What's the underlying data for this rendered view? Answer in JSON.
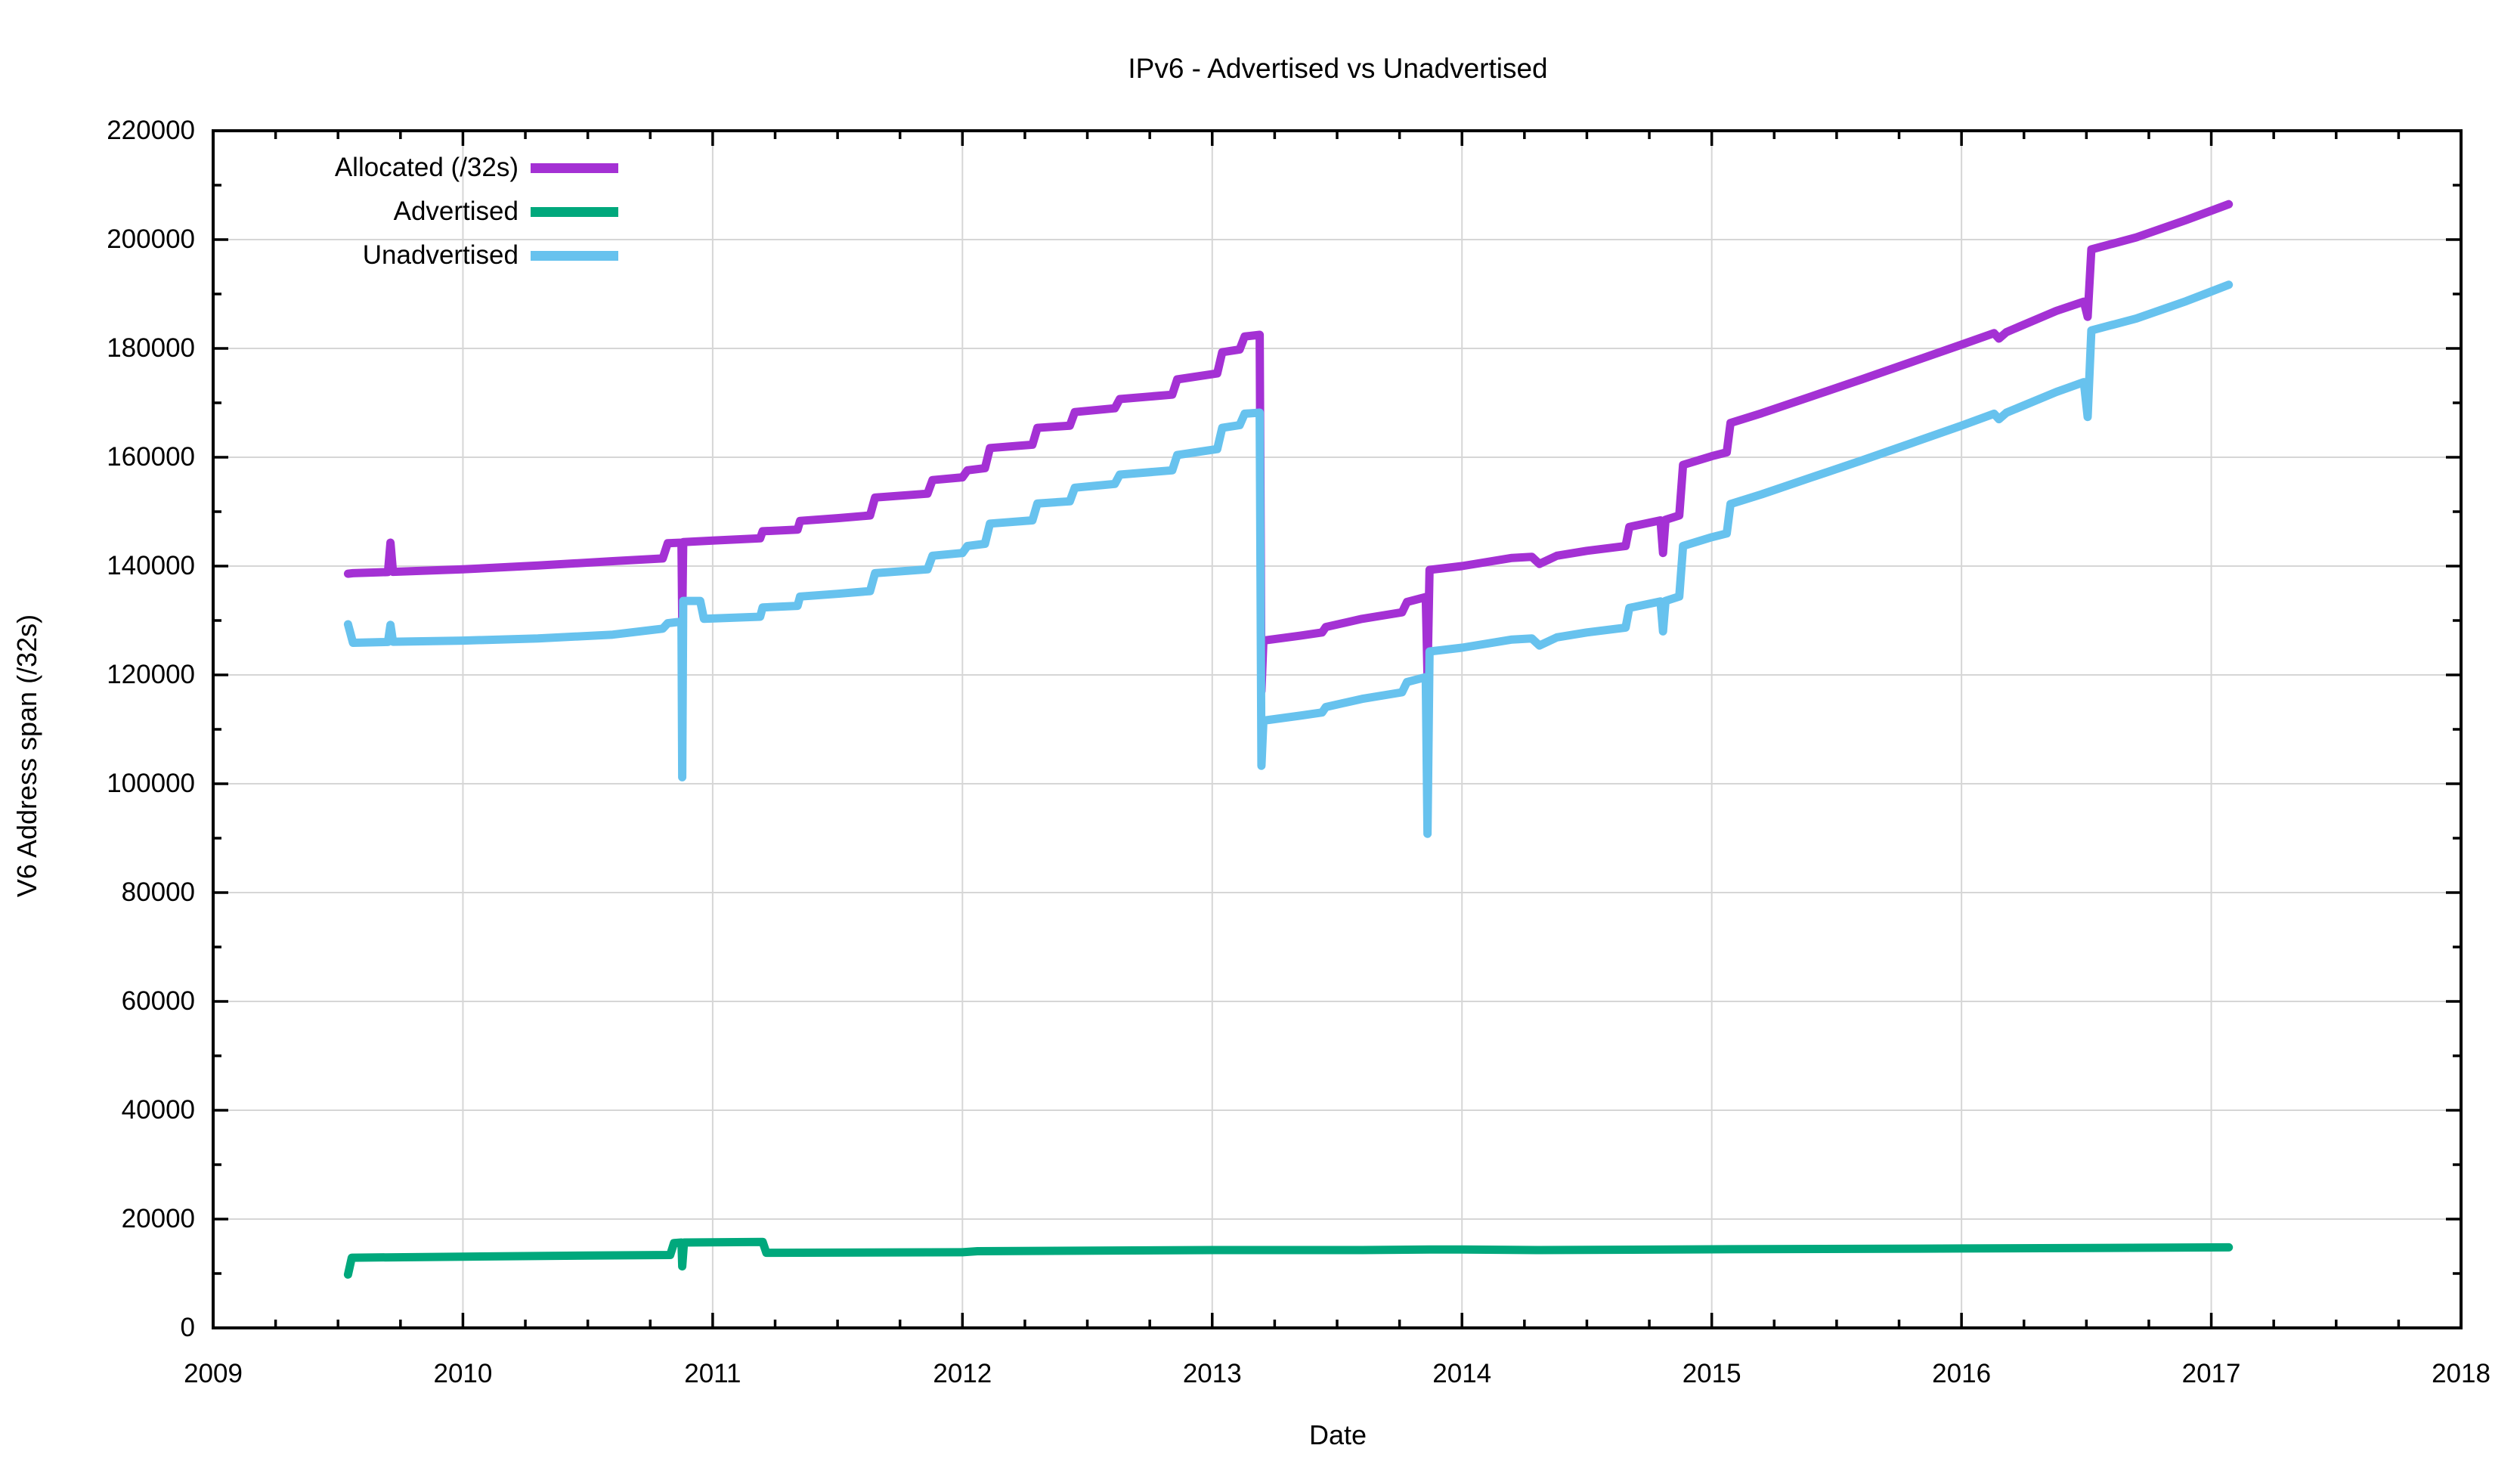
{
  "title": "IPv6 - Advertised vs Unadvertised",
  "axes": {
    "xlabel": "Date",
    "ylabel": "V6 Address span (/32s)",
    "x_tick_labels": [
      "2009",
      "2010",
      "2011",
      "2012",
      "2013",
      "2014",
      "2015",
      "2016",
      "2017",
      "2018"
    ],
    "x_tick_values": [
      2009,
      2010,
      2011,
      2012,
      2013,
      2014,
      2015,
      2016,
      2017,
      2018
    ],
    "y_tick_labels": [
      "0",
      "20000",
      "40000",
      "60000",
      "80000",
      "100000",
      "120000",
      "140000",
      "160000",
      "180000",
      "200000",
      "220000"
    ],
    "y_tick_values": [
      0,
      20000,
      40000,
      60000,
      80000,
      100000,
      120000,
      140000,
      160000,
      180000,
      200000,
      220000
    ],
    "x_minor_step": 0.25,
    "y_minor_step": 10000,
    "grid_color": "#d6d6d6",
    "axis_color": "#000000"
  },
  "legend": {
    "items": [
      {
        "label": "Allocated (/32s)"
      },
      {
        "label": "Advertised"
      },
      {
        "label": "Unadvertised"
      }
    ]
  },
  "chart_data": {
    "type": "line",
    "title": "IPv6 - Advertised vs Unadvertised",
    "xlabel": "Date",
    "ylabel": "V6 Address span (/32s)",
    "xlim": [
      2009,
      2018
    ],
    "ylim": [
      0,
      220000
    ],
    "grid": true,
    "legend_position": "top-left-inside",
    "series": [
      {
        "name": "Allocated (/32s)",
        "color": "#a431d4",
        "points": [
          [
            2009.54,
            138600
          ],
          [
            2009.56,
            138700
          ],
          [
            2009.7,
            138900
          ],
          [
            2009.71,
            144300
          ],
          [
            2009.72,
            138950
          ],
          [
            2010.0,
            139400
          ],
          [
            2010.3,
            140100
          ],
          [
            2010.6,
            140900
          ],
          [
            2010.8,
            141400
          ],
          [
            2010.82,
            144200
          ],
          [
            2010.875,
            144300
          ],
          [
            2010.878,
            130000
          ],
          [
            2010.882,
            144400
          ],
          [
            2011.0,
            144700
          ],
          [
            2011.19,
            145100
          ],
          [
            2011.2,
            146400
          ],
          [
            2011.34,
            146700
          ],
          [
            2011.35,
            148300
          ],
          [
            2011.5,
            148800
          ],
          [
            2011.63,
            149300
          ],
          [
            2011.65,
            152600
          ],
          [
            2011.86,
            153300
          ],
          [
            2011.88,
            155800
          ],
          [
            2012.0,
            156300
          ],
          [
            2012.02,
            157600
          ],
          [
            2012.09,
            158000
          ],
          [
            2012.11,
            161700
          ],
          [
            2012.28,
            162300
          ],
          [
            2012.3,
            165400
          ],
          [
            2012.43,
            165800
          ],
          [
            2012.45,
            168300
          ],
          [
            2012.61,
            169000
          ],
          [
            2012.63,
            170700
          ],
          [
            2012.84,
            171500
          ],
          [
            2012.86,
            174300
          ],
          [
            2013.02,
            175400
          ],
          [
            2013.04,
            179300
          ],
          [
            2013.11,
            179800
          ],
          [
            2013.13,
            182200
          ],
          [
            2013.19,
            182500
          ],
          [
            2013.197,
            117000
          ],
          [
            2013.205,
            126300
          ],
          [
            2013.35,
            127200
          ],
          [
            2013.44,
            127800
          ],
          [
            2013.455,
            128800
          ],
          [
            2013.6,
            130300
          ],
          [
            2013.76,
            131500
          ],
          [
            2013.78,
            133400
          ],
          [
            2013.855,
            134300
          ],
          [
            2013.862,
            119900
          ],
          [
            2013.87,
            139300
          ],
          [
            2014.0,
            140000
          ],
          [
            2014.2,
            141500
          ],
          [
            2014.28,
            141700
          ],
          [
            2014.31,
            140400
          ],
          [
            2014.38,
            141900
          ],
          [
            2014.5,
            142800
          ],
          [
            2014.655,
            143700
          ],
          [
            2014.67,
            147200
          ],
          [
            2014.795,
            148400
          ],
          [
            2014.805,
            142400
          ],
          [
            2014.815,
            148500
          ],
          [
            2014.87,
            149300
          ],
          [
            2014.885,
            158600
          ],
          [
            2015.0,
            160200
          ],
          [
            2015.06,
            160900
          ],
          [
            2015.075,
            166300
          ],
          [
            2015.2,
            168100
          ],
          [
            2015.4,
            171200
          ],
          [
            2015.6,
            174300
          ],
          [
            2015.8,
            177500
          ],
          [
            2016.0,
            180700
          ],
          [
            2016.13,
            182800
          ],
          [
            2016.15,
            181800
          ],
          [
            2016.18,
            183000
          ],
          [
            2016.38,
            186900
          ],
          [
            2016.49,
            188600
          ],
          [
            2016.505,
            185800
          ],
          [
            2016.52,
            198200
          ],
          [
            2016.7,
            200400
          ],
          [
            2016.9,
            203600
          ],
          [
            2017.07,
            206500
          ]
        ]
      },
      {
        "name": "Advertised",
        "color": "#00a87c",
        "points": [
          [
            2009.54,
            9800
          ],
          [
            2009.555,
            12900
          ],
          [
            2010.0,
            13100
          ],
          [
            2010.5,
            13300
          ],
          [
            2010.83,
            13400
          ],
          [
            2010.845,
            15600
          ],
          [
            2010.875,
            15700
          ],
          [
            2010.878,
            11300
          ],
          [
            2010.885,
            15700
          ],
          [
            2011.2,
            15800
          ],
          [
            2011.215,
            13800
          ],
          [
            2012.0,
            13900
          ],
          [
            2012.06,
            14100
          ],
          [
            2013.0,
            14300
          ],
          [
            2013.6,
            14300
          ],
          [
            2013.87,
            14400
          ],
          [
            2014.0,
            14400
          ],
          [
            2014.31,
            14300
          ],
          [
            2015.0,
            14450
          ],
          [
            2016.0,
            14600
          ],
          [
            2016.52,
            14700
          ],
          [
            2017.07,
            14800
          ]
        ]
      },
      {
        "name": "Unadvertised",
        "color": "#67c2ee",
        "points": [
          [
            2009.54,
            129300
          ],
          [
            2009.56,
            125900
          ],
          [
            2009.7,
            126050
          ],
          [
            2009.71,
            129200
          ],
          [
            2009.72,
            126100
          ],
          [
            2010.0,
            126300
          ],
          [
            2010.3,
            126700
          ],
          [
            2010.6,
            127400
          ],
          [
            2010.8,
            128500
          ],
          [
            2010.82,
            129500
          ],
          [
            2010.875,
            129800
          ],
          [
            2010.878,
            101200
          ],
          [
            2010.882,
            133600
          ],
          [
            2010.95,
            133600
          ],
          [
            2010.965,
            130300
          ],
          [
            2011.19,
            130700
          ],
          [
            2011.2,
            132400
          ],
          [
            2011.34,
            132700
          ],
          [
            2011.35,
            134400
          ],
          [
            2011.5,
            134900
          ],
          [
            2011.63,
            135400
          ],
          [
            2011.65,
            138700
          ],
          [
            2011.86,
            139400
          ],
          [
            2011.88,
            141900
          ],
          [
            2012.0,
            142400
          ],
          [
            2012.02,
            143700
          ],
          [
            2012.09,
            144100
          ],
          [
            2012.11,
            147800
          ],
          [
            2012.28,
            148400
          ],
          [
            2012.3,
            151500
          ],
          [
            2012.43,
            151900
          ],
          [
            2012.45,
            154400
          ],
          [
            2012.61,
            155100
          ],
          [
            2012.63,
            156800
          ],
          [
            2012.84,
            157600
          ],
          [
            2012.86,
            160400
          ],
          [
            2013.02,
            161500
          ],
          [
            2013.04,
            165400
          ],
          [
            2013.11,
            165900
          ],
          [
            2013.13,
            168000
          ],
          [
            2013.19,
            168200
          ],
          [
            2013.197,
            103300
          ],
          [
            2013.205,
            111600
          ],
          [
            2013.35,
            112500
          ],
          [
            2013.44,
            113100
          ],
          [
            2013.455,
            114100
          ],
          [
            2013.6,
            115600
          ],
          [
            2013.76,
            116800
          ],
          [
            2013.78,
            118700
          ],
          [
            2013.855,
            119600
          ],
          [
            2013.862,
            90800
          ],
          [
            2013.87,
            124300
          ],
          [
            2014.0,
            125000
          ],
          [
            2014.2,
            126500
          ],
          [
            2014.28,
            126700
          ],
          [
            2014.31,
            125400
          ],
          [
            2014.38,
            126900
          ],
          [
            2014.5,
            127800
          ],
          [
            2014.655,
            128700
          ],
          [
            2014.67,
            132300
          ],
          [
            2014.795,
            133500
          ],
          [
            2014.805,
            128000
          ],
          [
            2014.815,
            133600
          ],
          [
            2014.87,
            134400
          ],
          [
            2014.885,
            143700
          ],
          [
            2015.0,
            145300
          ],
          [
            2015.06,
            146000
          ],
          [
            2015.075,
            151400
          ],
          [
            2015.2,
            153200
          ],
          [
            2015.4,
            156300
          ],
          [
            2015.6,
            159400
          ],
          [
            2015.8,
            162600
          ],
          [
            2016.0,
            165800
          ],
          [
            2016.13,
            168000
          ],
          [
            2016.15,
            167000
          ],
          [
            2016.18,
            168200
          ],
          [
            2016.38,
            172000
          ],
          [
            2016.49,
            173800
          ],
          [
            2016.505,
            167400
          ],
          [
            2016.52,
            183300
          ],
          [
            2016.7,
            185500
          ],
          [
            2016.9,
            188700
          ],
          [
            2017.07,
            191700
          ]
        ]
      }
    ]
  }
}
